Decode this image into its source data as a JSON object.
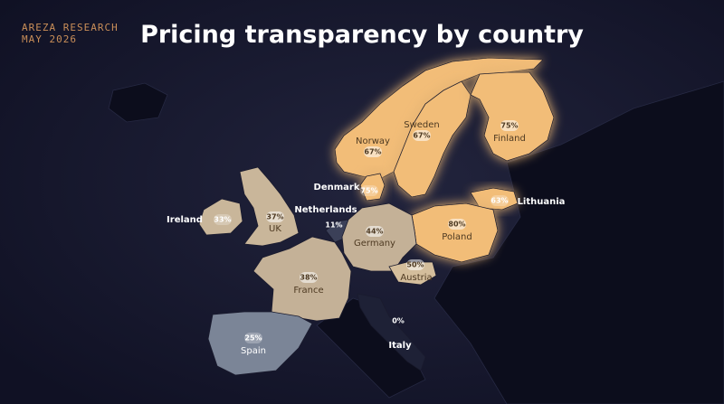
{
  "header": {
    "brand": "AREZA RESEARCH",
    "date": "MAY 2026",
    "title": "Pricing transparency by country"
  },
  "countries": [
    {
      "name": "Norway",
      "value_label": "67%",
      "color": "#f2bd78"
    },
    {
      "name": "Sweden",
      "value_label": "67%",
      "color": "#f2bd78"
    },
    {
      "name": "Finland",
      "value_label": "75%",
      "color": "#f2bd78"
    },
    {
      "name": "Denmark",
      "value_label": "75%",
      "color": "#f2bd78"
    },
    {
      "name": "Lithuania",
      "value_label": "63%",
      "color": "#f2bd78"
    },
    {
      "name": "Poland",
      "value_label": "80%",
      "color": "#f2bd78"
    },
    {
      "name": "Ireland",
      "value_label": "33%",
      "color": "#c9b69a"
    },
    {
      "name": "UK",
      "value_label": "37%",
      "color": "#c9b69a"
    },
    {
      "name": "Netherlands",
      "value_label": "11%",
      "color": "#3b4058"
    },
    {
      "name": "Germany",
      "value_label": "44%",
      "color": "#c4b197"
    },
    {
      "name": "Austria",
      "value_label": "50%",
      "color": "#d4be9c"
    },
    {
      "name": "France",
      "value_label": "38%",
      "color": "#c4b197"
    },
    {
      "name": "Spain",
      "value_label": "25%",
      "color": "#7b8597"
    },
    {
      "name": "Italy",
      "value_label": "0%",
      "color": "#1e2136"
    }
  ]
}
